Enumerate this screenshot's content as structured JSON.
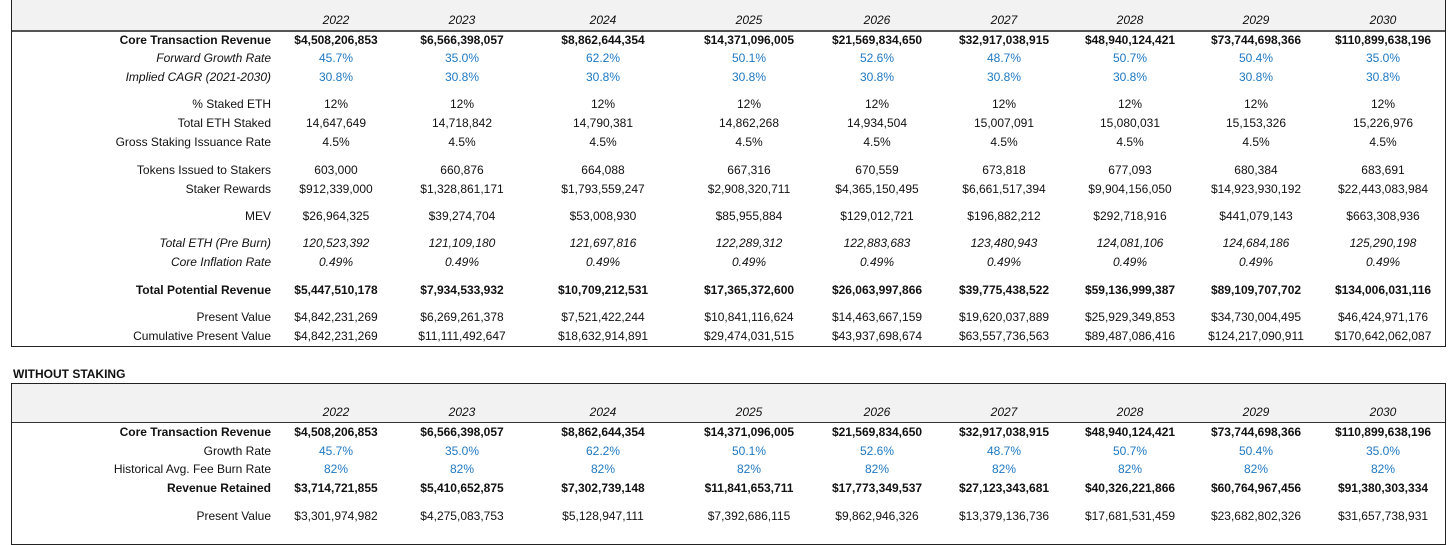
{
  "years": [
    "2022",
    "2023",
    "2024",
    "2025",
    "2026",
    "2027",
    "2028",
    "2029",
    "2030"
  ],
  "with_staking": {
    "rows": [
      {
        "label": "Core Transaction Revenue",
        "values": [
          "$4,508,206,853",
          "$6,566,398,057",
          "$8,862,644,354",
          "$14,371,096,005",
          "$21,569,834,650",
          "$32,917,038,915",
          "$48,940,124,421",
          "$73,744,698,366",
          "$110,899,638,196"
        ]
      },
      {
        "label": "Forward Growth Rate",
        "values": [
          "45.7%",
          "35.0%",
          "62.2%",
          "50.1%",
          "52.6%",
          "48.7%",
          "50.7%",
          "50.4%",
          "35.0%"
        ]
      },
      {
        "label": "Implied CAGR (2021-2030)",
        "values": [
          "30.8%",
          "30.8%",
          "30.8%",
          "30.8%",
          "30.8%",
          "30.8%",
          "30.8%",
          "30.8%",
          "30.8%"
        ]
      },
      {
        "label": "% Staked ETH",
        "values": [
          "12%",
          "12%",
          "12%",
          "12%",
          "12%",
          "12%",
          "12%",
          "12%",
          "12%"
        ]
      },
      {
        "label": "Total ETH Staked",
        "values": [
          "14,647,649",
          "14,718,842",
          "14,790,381",
          "14,862,268",
          "14,934,504",
          "15,007,091",
          "15,080,031",
          "15,153,326",
          "15,226,976"
        ]
      },
      {
        "label": "Gross Staking Issuance Rate",
        "values": [
          "4.5%",
          "4.5%",
          "4.5%",
          "4.5%",
          "4.5%",
          "4.5%",
          "4.5%",
          "4.5%",
          "4.5%"
        ]
      },
      {
        "label": "Tokens Issued to Stakers",
        "values": [
          "603,000",
          "660,876",
          "664,088",
          "667,316",
          "670,559",
          "673,818",
          "677,093",
          "680,384",
          "683,691"
        ]
      },
      {
        "label": "Staker Rewards",
        "values": [
          "$912,339,000",
          "$1,328,861,171",
          "$1,793,559,247",
          "$2,908,320,711",
          "$4,365,150,495",
          "$6,661,517,394",
          "$9,904,156,050",
          "$14,923,930,192",
          "$22,443,083,984"
        ]
      },
      {
        "label": "MEV",
        "values": [
          "$26,964,325",
          "$39,274,704",
          "$53,008,930",
          "$85,955,884",
          "$129,012,721",
          "$196,882,212",
          "$292,718,916",
          "$441,079,143",
          "$663,308,936"
        ]
      },
      {
        "label": "Total ETH (Pre Burn)",
        "values": [
          "120,523,392",
          "121,109,180",
          "121,697,816",
          "122,289,312",
          "122,883,683",
          "123,480,943",
          "124,081,106",
          "124,684,186",
          "125,290,198"
        ]
      },
      {
        "label": "Core Inflation Rate",
        "values": [
          "0.49%",
          "0.49%",
          "0.49%",
          "0.49%",
          "0.49%",
          "0.49%",
          "0.49%",
          "0.49%",
          "0.49%"
        ]
      },
      {
        "label": "Total Potential Revenue",
        "values": [
          "$5,447,510,178",
          "$7,934,533,932",
          "$10,709,212,531",
          "$17,365,372,600",
          "$26,063,997,866",
          "$39,775,438,522",
          "$59,136,999,387",
          "$89,109,707,702",
          "$134,006,031,116"
        ]
      },
      {
        "label": "Present Value",
        "values": [
          "$4,842,231,269",
          "$6,269,261,378",
          "$7,521,422,244",
          "$10,841,116,624",
          "$14,463,667,159",
          "$19,620,037,889",
          "$25,929,349,853",
          "$34,730,004,495",
          "$46,424,971,176"
        ]
      },
      {
        "label": "Cumulative Present Value",
        "values": [
          "$4,842,231,269",
          "$11,111,492,647",
          "$18,632,914,891",
          "$29,474,031,515",
          "$43,937,698,674",
          "$63,557,736,563",
          "$89,487,086,416",
          "$124,217,090,911",
          "$170,642,062,087"
        ]
      }
    ]
  },
  "without_staking": {
    "title": "WITHOUT STAKING",
    "rows": [
      {
        "label": "Core Transaction Revenue",
        "values": [
          "$4,508,206,853",
          "$6,566,398,057",
          "$8,862,644,354",
          "$14,371,096,005",
          "$21,569,834,650",
          "$32,917,038,915",
          "$48,940,124,421",
          "$73,744,698,366",
          "$110,899,638,196"
        ]
      },
      {
        "label": "Growth Rate",
        "values": [
          "45.7%",
          "35.0%",
          "62.2%",
          "50.1%",
          "52.6%",
          "48.7%",
          "50.7%",
          "50.4%",
          "35.0%"
        ]
      },
      {
        "label": "Historical Avg. Fee Burn Rate",
        "values": [
          "82%",
          "82%",
          "82%",
          "82%",
          "82%",
          "82%",
          "82%",
          "82%",
          "82%"
        ]
      },
      {
        "label": "Revenue Retained",
        "values": [
          "$3,714,721,855",
          "$5,410,652,875",
          "$7,302,739,148",
          "$11,841,653,711",
          "$17,773,349,537",
          "$27,123,343,681",
          "$40,326,221,866",
          "$60,764,967,456",
          "$91,380,303,334"
        ]
      },
      {
        "label": "Present Value",
        "values": [
          "$3,301,974,982",
          "$4,275,083,753",
          "$5,128,947,111",
          "$7,392,686,115",
          "$9,862,946,326",
          "$13,379,136,736",
          "$17,681,531,459",
          "$23,682,802,326",
          "$31,657,738,931"
        ]
      }
    ]
  },
  "colors": {
    "input_blue": "#1f78c1",
    "header_gray": "#f2f2f2"
  }
}
